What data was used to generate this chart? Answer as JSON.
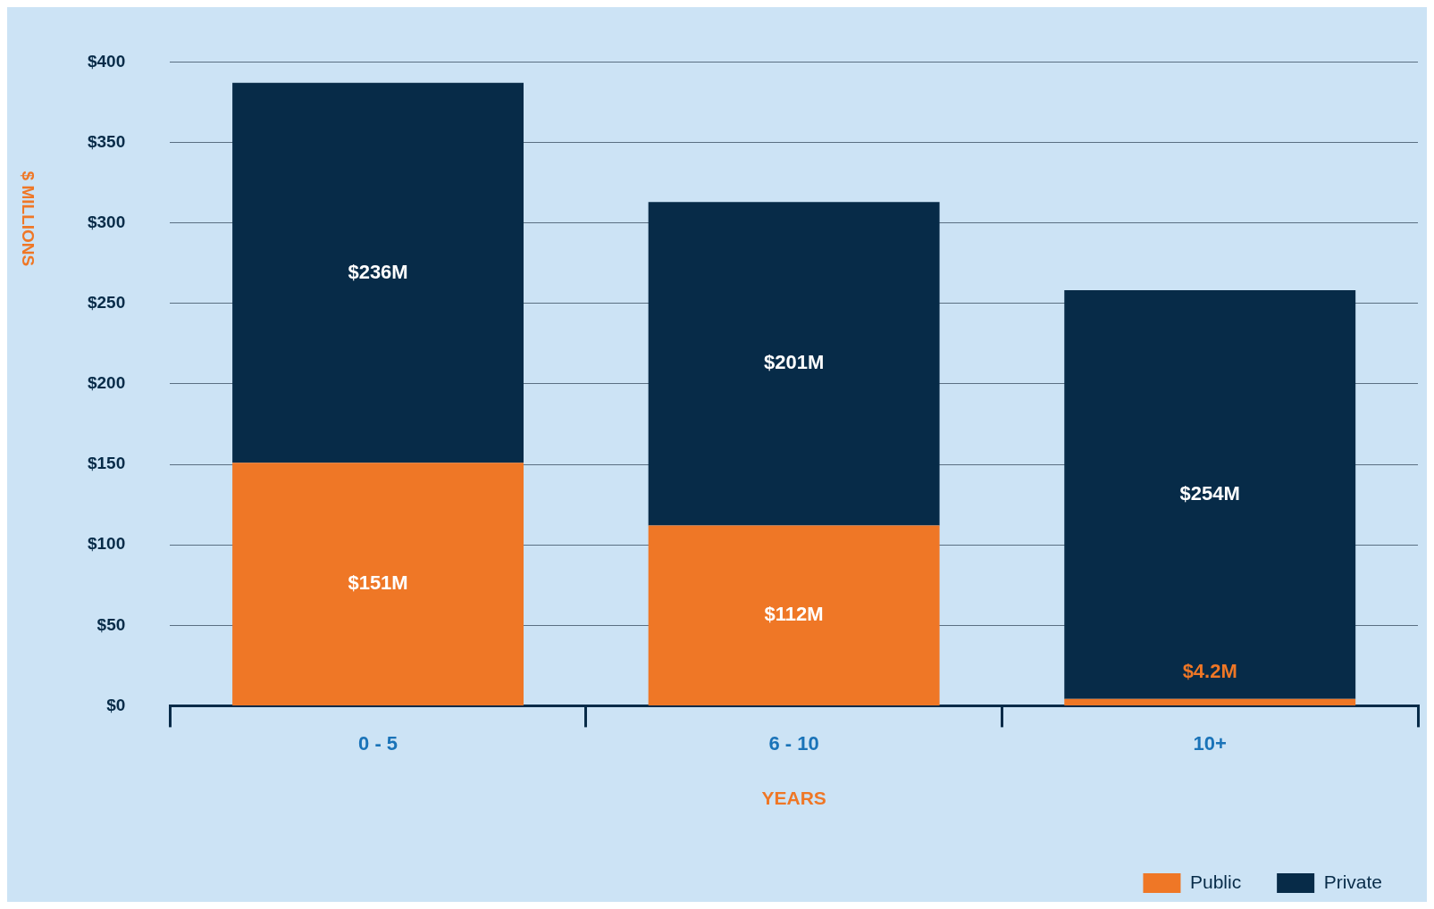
{
  "chart_data": {
    "type": "bar",
    "stacked": true,
    "xlabel": "YEARS",
    "ylabel": "$ MILLIONS",
    "categories": [
      "0 - 5",
      "6 - 10",
      "10+"
    ],
    "series": [
      {
        "name": "Public",
        "color": "#ef7726",
        "values": [
          151,
          112,
          4.2
        ],
        "value_labels": [
          "$151M",
          "$112M",
          "$4.2M"
        ]
      },
      {
        "name": "Private",
        "color": "#072b48",
        "values": [
          236,
          201,
          254
        ],
        "value_labels": [
          "$236M",
          "$201M",
          "$254M"
        ]
      }
    ],
    "ylim": [
      0,
      400
    ],
    "yticks": [
      {
        "value": 0,
        "label": "$0"
      },
      {
        "value": 50,
        "label": "$50"
      },
      {
        "value": 100,
        "label": "$100"
      },
      {
        "value": 150,
        "label": "$150"
      },
      {
        "value": 200,
        "label": "$200"
      },
      {
        "value": 250,
        "label": "$250"
      },
      {
        "value": 300,
        "label": "$300"
      },
      {
        "value": 350,
        "label": "$350"
      },
      {
        "value": 400,
        "label": "$400"
      }
    ],
    "grid": "y",
    "legend": "bottom right"
  }
}
